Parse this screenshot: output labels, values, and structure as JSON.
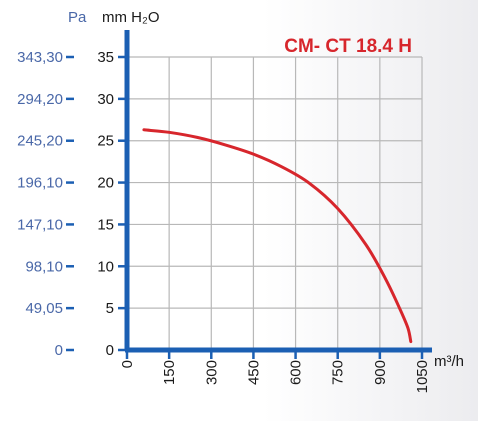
{
  "chart_data": {
    "type": "line",
    "title": "CM- CT 18.4 H",
    "xlabel": "m³/h",
    "ylabel_left": "Pa",
    "ylabel_right": "mm H₂O",
    "x_ticks": [
      "0",
      "150",
      "300",
      "450",
      "600",
      "750",
      "900",
      "1050"
    ],
    "y_ticks_mm": [
      "0",
      "5",
      "10",
      "15",
      "20",
      "25",
      "30",
      "35"
    ],
    "y_ticks_pa": [
      "0",
      "49,05",
      "98,10",
      "147,10",
      "196,10",
      "245,20",
      "294,20",
      "343,30"
    ],
    "xlim": [
      0,
      1050
    ],
    "ylim": [
      0,
      35
    ],
    "grid": true,
    "series": [
      {
        "color": "#d7262c",
        "x": [
          60,
          150,
          250,
          350,
          450,
          550,
          650,
          750,
          850,
          920,
          970,
          1000,
          1010
        ],
        "y": [
          26.3,
          26.0,
          25.4,
          24.5,
          23.4,
          21.9,
          19.9,
          16.9,
          12.6,
          8.5,
          5.0,
          2.6,
          1.0
        ]
      }
    ],
    "colors": {
      "axis": "#1b5fb3",
      "pa_text": "#4a68a8",
      "grid": "#b8b8b8",
      "title": "#d7262c"
    }
  }
}
